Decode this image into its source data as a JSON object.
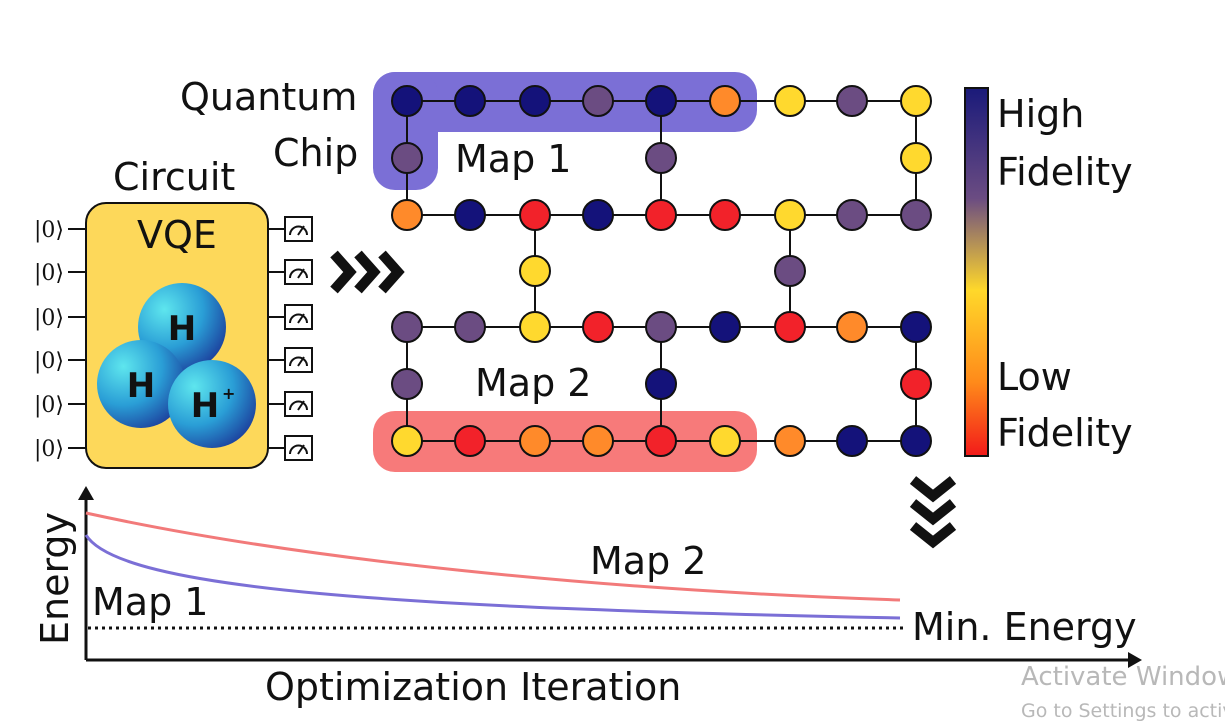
{
  "chip": {
    "title_line1": "Quantum",
    "title_line2": "Chip",
    "map1_label": "Map 1",
    "map2_label": "Map 2"
  },
  "circuit": {
    "title": "Circuit",
    "algorithm": "VQE",
    "qubit_labels": [
      "|0⟩",
      "|0⟩",
      "|0⟩",
      "|0⟩",
      "|0⟩",
      "|0⟩"
    ],
    "atoms": [
      "H",
      "H",
      "H"
    ],
    "ion_charge": "+"
  },
  "colorbar": {
    "high_line1": "High",
    "high_line2": "Fidelity",
    "low_line1": "Low",
    "low_line2": "Fidelity"
  },
  "energy_plot": {
    "y_label": "Energy",
    "x_label": "Optimization Iteration",
    "map1_label": "Map 1",
    "map2_label": "Map 2",
    "min_label": "Min. Energy"
  },
  "watermark": {
    "line1": "Activate Windows",
    "line2": "Go to Settings to activate Windows."
  }
}
